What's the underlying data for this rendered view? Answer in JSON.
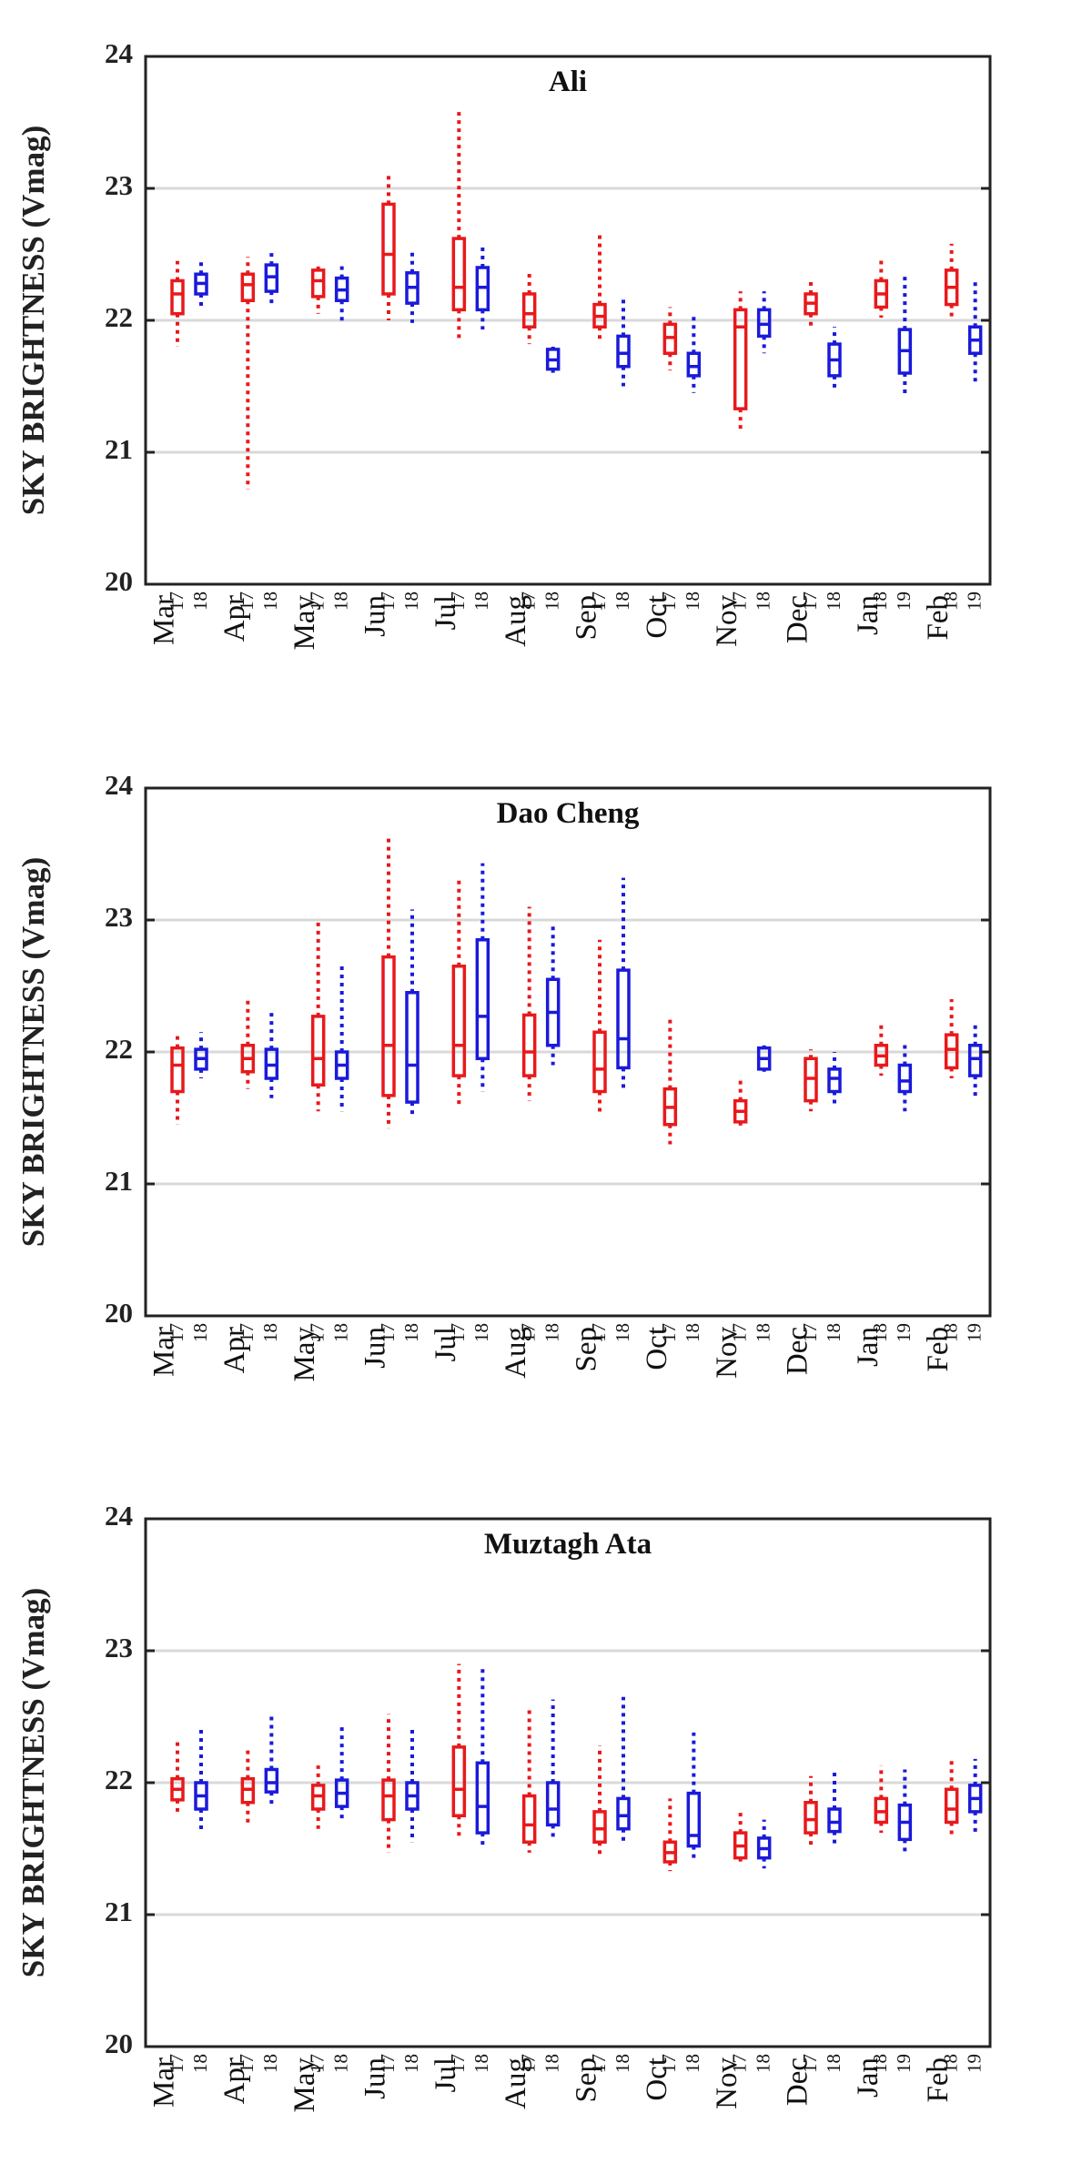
{
  "chart_data": [
    {
      "type": "box",
      "title": "Ali",
      "ylabel": "SKY BRIGHTNESS (Vmag)",
      "ylim": [
        20,
        24
      ],
      "yticks": [
        20,
        21,
        22,
        23,
        24
      ],
      "ytick_labels": [
        "20",
        "21",
        "22",
        "23",
        "24"
      ],
      "grid": true,
      "colors": [
        "#e8191b",
        "#1a1adb"
      ],
      "months": [
        {
          "label": "Mar",
          "years": [
            "17",
            "18"
          ],
          "boxes": [
            {
              "wlo": 21.8,
              "q1": 22.05,
              "med": 22.2,
              "q3": 22.3,
              "whi": 22.45
            },
            {
              "wlo": 22.08,
              "q1": 22.2,
              "med": 22.28,
              "q3": 22.35,
              "whi": 22.47
            }
          ]
        },
        {
          "label": "Apr",
          "years": [
            "17",
            "18"
          ],
          "boxes": [
            {
              "wlo": 20.72,
              "q1": 22.15,
              "med": 22.27,
              "q3": 22.35,
              "whi": 22.48
            },
            {
              "wlo": 22.1,
              "q1": 22.22,
              "med": 22.33,
              "q3": 22.42,
              "whi": 22.52
            }
          ]
        },
        {
          "label": "May",
          "years": [
            "17",
            "18"
          ],
          "boxes": [
            {
              "wlo": 22.05,
              "q1": 22.18,
              "med": 22.3,
              "q3": 22.38,
              "whi": 22.42
            },
            {
              "wlo": 21.98,
              "q1": 22.15,
              "med": 22.23,
              "q3": 22.32,
              "whi": 22.42
            }
          ]
        },
        {
          "label": "Jun",
          "years": [
            "17",
            "18"
          ],
          "boxes": [
            {
              "wlo": 22.0,
              "q1": 22.2,
              "med": 22.5,
              "q3": 22.88,
              "whi": 23.12
            },
            {
              "wlo": 21.98,
              "q1": 22.13,
              "med": 22.25,
              "q3": 22.36,
              "whi": 22.52
            }
          ]
        },
        {
          "label": "Jul",
          "years": [
            "17",
            "18"
          ],
          "boxes": [
            {
              "wlo": 21.85,
              "q1": 22.08,
              "med": 22.25,
              "q3": 22.62,
              "whi": 23.6
            },
            {
              "wlo": 21.93,
              "q1": 22.08,
              "med": 22.25,
              "q3": 22.4,
              "whi": 22.57
            }
          ]
        },
        {
          "label": "Aug",
          "years": [
            "17",
            "18"
          ],
          "boxes": [
            {
              "wlo": 21.82,
              "q1": 21.95,
              "med": 22.05,
              "q3": 22.2,
              "whi": 22.37
            },
            {
              "wlo": 21.6,
              "q1": 21.63,
              "med": 21.7,
              "q3": 21.78,
              "whi": 21.8
            }
          ]
        },
        {
          "label": "Sep",
          "years": [
            "17",
            "18"
          ],
          "boxes": [
            {
              "wlo": 21.85,
              "q1": 21.95,
              "med": 22.03,
              "q3": 22.12,
              "whi": 22.65
            },
            {
              "wlo": 21.5,
              "q1": 21.65,
              "med": 21.75,
              "q3": 21.88,
              "whi": 22.17
            }
          ]
        },
        {
          "label": "Oct",
          "years": [
            "17",
            "18"
          ],
          "boxes": [
            {
              "wlo": 21.62,
              "q1": 21.75,
              "med": 21.87,
              "q3": 21.97,
              "whi": 22.1
            },
            {
              "wlo": 21.45,
              "q1": 21.58,
              "med": 21.65,
              "q3": 21.75,
              "whi": 22.05
            }
          ]
        },
        {
          "label": "Nov",
          "years": [
            "17",
            "18"
          ],
          "boxes": [
            {
              "wlo": 21.17,
              "q1": 21.33,
              "med": 21.95,
              "q3": 22.08,
              "whi": 22.22
            },
            {
              "wlo": 21.75,
              "q1": 21.88,
              "med": 21.97,
              "q3": 22.08,
              "whi": 22.22
            }
          ]
        },
        {
          "label": "Dec",
          "years": [
            "17",
            "18"
          ],
          "boxes": [
            {
              "wlo": 21.95,
              "q1": 22.05,
              "med": 22.13,
              "q3": 22.2,
              "whi": 22.32
            },
            {
              "wlo": 21.47,
              "q1": 21.58,
              "med": 21.7,
              "q3": 21.82,
              "whi": 21.95
            }
          ]
        },
        {
          "label": "Jan",
          "years": [
            "18",
            "19"
          ],
          "boxes": [
            {
              "wlo": 22.02,
              "q1": 22.1,
              "med": 22.2,
              "q3": 22.3,
              "whi": 22.47
            },
            {
              "wlo": 21.43,
              "q1": 21.6,
              "med": 21.77,
              "q3": 21.93,
              "whi": 22.35
            }
          ]
        },
        {
          "label": "Feb",
          "years": [
            "18",
            "19"
          ],
          "boxes": [
            {
              "wlo": 22.0,
              "q1": 22.12,
              "med": 22.25,
              "q3": 22.38,
              "whi": 22.58
            },
            {
              "wlo": 21.53,
              "q1": 21.75,
              "med": 21.85,
              "q3": 21.95,
              "whi": 22.3
            }
          ]
        }
      ]
    },
    {
      "type": "box",
      "title": "Dao Cheng",
      "ylabel": "SKY BRIGHTNESS (Vmag)",
      "ylim": [
        20,
        24
      ],
      "yticks": [
        20,
        21,
        22,
        23,
        24
      ],
      "ytick_labels": [
        "20",
        "21",
        "22",
        "23",
        "24"
      ],
      "grid": true,
      "colors": [
        "#e8191b",
        "#1a1adb"
      ],
      "months": [
        {
          "label": "Mar",
          "years": [
            "17",
            "18"
          ],
          "boxes": [
            {
              "wlo": 21.45,
              "q1": 21.7,
              "med": 21.9,
              "q3": 22.03,
              "whi": 22.15
            },
            {
              "wlo": 21.8,
              "q1": 21.87,
              "med": 21.95,
              "q3": 22.02,
              "whi": 22.15
            }
          ]
        },
        {
          "label": "Apr",
          "years": [
            "17",
            "18"
          ],
          "boxes": [
            {
              "wlo": 21.72,
              "q1": 21.85,
              "med": 21.95,
              "q3": 22.05,
              "whi": 22.4
            },
            {
              "wlo": 21.65,
              "q1": 21.8,
              "med": 21.9,
              "q3": 22.02,
              "whi": 22.3
            }
          ]
        },
        {
          "label": "May",
          "years": [
            "17",
            "18"
          ],
          "boxes": [
            {
              "wlo": 21.55,
              "q1": 21.75,
              "med": 21.95,
              "q3": 22.27,
              "whi": 22.98
            },
            {
              "wlo": 21.55,
              "q1": 21.8,
              "med": 21.9,
              "q3": 22.0,
              "whi": 22.68
            }
          ]
        },
        {
          "label": "Jun",
          "years": [
            "17",
            "18"
          ],
          "boxes": [
            {
              "wlo": 21.42,
              "q1": 21.67,
              "med": 22.05,
              "q3": 22.72,
              "whi": 23.62
            },
            {
              "wlo": 21.5,
              "q1": 21.62,
              "med": 21.9,
              "q3": 22.45,
              "whi": 23.08
            }
          ]
        },
        {
          "label": "Jul",
          "years": [
            "17",
            "18"
          ],
          "boxes": [
            {
              "wlo": 21.58,
              "q1": 21.82,
              "med": 22.05,
              "q3": 22.65,
              "whi": 23.33
            },
            {
              "wlo": 21.7,
              "q1": 21.95,
              "med": 22.27,
              "q3": 22.85,
              "whi": 23.43
            }
          ]
        },
        {
          "label": "Aug",
          "years": [
            "17",
            "18"
          ],
          "boxes": [
            {
              "wlo": 21.63,
              "q1": 21.82,
              "med": 22.0,
              "q3": 22.28,
              "whi": 23.1
            },
            {
              "wlo": 21.9,
              "q1": 22.05,
              "med": 22.3,
              "q3": 22.55,
              "whi": 22.97
            }
          ]
        },
        {
          "label": "Sep",
          "years": [
            "17",
            "18"
          ],
          "boxes": [
            {
              "wlo": 21.52,
              "q1": 21.7,
              "med": 21.87,
              "q3": 22.15,
              "whi": 22.85
            },
            {
              "wlo": 21.72,
              "q1": 21.88,
              "med": 22.1,
              "q3": 22.62,
              "whi": 23.32
            }
          ]
        },
        {
          "label": "Oct",
          "years": [
            "17",
            "18"
          ],
          "boxes": [
            {
              "wlo": 21.3,
              "q1": 21.45,
              "med": 21.58,
              "q3": 21.72,
              "whi": 22.25
            },
            null
          ]
        },
        {
          "label": "Nov",
          "years": [
            "17",
            "18"
          ],
          "boxes": [
            {
              "wlo": 21.42,
              "q1": 21.47,
              "med": 21.55,
              "q3": 21.63,
              "whi": 21.8
            },
            {
              "wlo": 21.85,
              "q1": 21.87,
              "med": 21.95,
              "q3": 22.03,
              "whi": 22.05
            }
          ]
        },
        {
          "label": "Dec",
          "years": [
            "17",
            "18"
          ],
          "boxes": [
            {
              "wlo": 21.55,
              "q1": 21.63,
              "med": 21.8,
              "q3": 21.95,
              "whi": 22.02
            },
            {
              "wlo": 21.58,
              "q1": 21.7,
              "med": 21.8,
              "q3": 21.87,
              "whi": 22.0
            }
          ]
        },
        {
          "label": "Jan",
          "years": [
            "18",
            "19"
          ],
          "boxes": [
            {
              "wlo": 21.82,
              "q1": 21.9,
              "med": 21.97,
              "q3": 22.05,
              "whi": 22.22
            },
            {
              "wlo": 21.55,
              "q1": 21.7,
              "med": 21.78,
              "q3": 21.9,
              "whi": 22.08
            }
          ]
        },
        {
          "label": "Feb",
          "years": [
            "18",
            "19"
          ],
          "boxes": [
            {
              "wlo": 21.8,
              "q1": 21.88,
              "med": 22.02,
              "q3": 22.13,
              "whi": 22.4
            },
            {
              "wlo": 21.65,
              "q1": 21.82,
              "med": 21.95,
              "q3": 22.05,
              "whi": 22.22
            }
          ]
        }
      ]
    },
    {
      "type": "box",
      "title": "Muztagh Ata",
      "ylabel": "SKY BRIGHTNESS (Vmag)",
      "ylim": [
        20,
        24
      ],
      "yticks": [
        20,
        21,
        22,
        23,
        24
      ],
      "ytick_labels": [
        "20",
        "21",
        "22",
        "23",
        "24"
      ],
      "grid": true,
      "colors": [
        "#e8191b",
        "#1a1adb"
      ],
      "months": [
        {
          "label": "Mar",
          "years": [
            "17",
            "18"
          ],
          "boxes": [
            {
              "wlo": 21.75,
              "q1": 21.87,
              "med": 21.95,
              "q3": 22.03,
              "whi": 22.32
            },
            {
              "wlo": 21.63,
              "q1": 21.8,
              "med": 21.9,
              "q3": 22.0,
              "whi": 22.4
            }
          ]
        },
        {
          "label": "Apr",
          "years": [
            "17",
            "18"
          ],
          "boxes": [
            {
              "wlo": 21.68,
              "q1": 21.85,
              "med": 21.95,
              "q3": 22.03,
              "whi": 22.25
            },
            {
              "wlo": 21.82,
              "q1": 21.93,
              "med": 22.0,
              "q3": 22.1,
              "whi": 22.52
            }
          ]
        },
        {
          "label": "May",
          "years": [
            "17",
            "18"
          ],
          "boxes": [
            {
              "wlo": 21.65,
              "q1": 21.8,
              "med": 21.9,
              "q3": 21.98,
              "whi": 22.13
            },
            {
              "wlo": 21.73,
              "q1": 21.82,
              "med": 21.92,
              "q3": 22.02,
              "whi": 22.42
            }
          ]
        },
        {
          "label": "Jun",
          "years": [
            "17",
            "18"
          ],
          "boxes": [
            {
              "wlo": 21.47,
              "q1": 21.72,
              "med": 21.9,
              "q3": 22.02,
              "whi": 22.52
            },
            {
              "wlo": 21.55,
              "q1": 21.8,
              "med": 21.9,
              "q3": 22.0,
              "whi": 22.4
            }
          ]
        },
        {
          "label": "Jul",
          "years": [
            "17",
            "18"
          ],
          "boxes": [
            {
              "wlo": 21.58,
              "q1": 21.75,
              "med": 21.95,
              "q3": 22.27,
              "whi": 22.9
            },
            {
              "wlo": 21.52,
              "q1": 21.62,
              "med": 21.82,
              "q3": 22.15,
              "whi": 22.88
            }
          ]
        },
        {
          "label": "Aug",
          "years": [
            "17",
            "18"
          ],
          "boxes": [
            {
              "wlo": 21.47,
              "q1": 21.55,
              "med": 21.68,
              "q3": 21.9,
              "whi": 22.57
            },
            {
              "wlo": 21.58,
              "q1": 21.68,
              "med": 21.8,
              "q3": 22.0,
              "whi": 22.63
            }
          ]
        },
        {
          "label": "Sep",
          "years": [
            "17",
            "18"
          ],
          "boxes": [
            {
              "wlo": 21.45,
              "q1": 21.55,
              "med": 21.65,
              "q3": 21.78,
              "whi": 22.28
            },
            {
              "wlo": 21.55,
              "q1": 21.65,
              "med": 21.75,
              "q3": 21.88,
              "whi": 22.65
            }
          ]
        },
        {
          "label": "Oct",
          "years": [
            "17",
            "18"
          ],
          "boxes": [
            {
              "wlo": 21.33,
              "q1": 21.4,
              "med": 21.47,
              "q3": 21.55,
              "whi": 21.88
            },
            {
              "wlo": 21.42,
              "q1": 21.52,
              "med": 21.6,
              "q3": 21.92,
              "whi": 22.38
            }
          ]
        },
        {
          "label": "Nov",
          "years": [
            "17",
            "18"
          ],
          "boxes": [
            {
              "wlo": 21.37,
              "q1": 21.43,
              "med": 21.52,
              "q3": 21.62,
              "whi": 21.78
            },
            {
              "wlo": 21.35,
              "q1": 21.43,
              "med": 21.5,
              "q3": 21.58,
              "whi": 21.72
            }
          ]
        },
        {
          "label": "Dec",
          "years": [
            "17",
            "18"
          ],
          "boxes": [
            {
              "wlo": 21.5,
              "q1": 21.62,
              "med": 21.72,
              "q3": 21.85,
              "whi": 22.05
            },
            {
              "wlo": 21.52,
              "q1": 21.63,
              "med": 21.7,
              "q3": 21.8,
              "whi": 22.08
            }
          ]
        },
        {
          "label": "Jan",
          "years": [
            "18",
            "19"
          ],
          "boxes": [
            {
              "wlo": 21.62,
              "q1": 21.7,
              "med": 21.78,
              "q3": 21.88,
              "whi": 22.13
            },
            {
              "wlo": 21.48,
              "q1": 21.57,
              "med": 21.7,
              "q3": 21.83,
              "whi": 22.1
            }
          ]
        },
        {
          "label": "Feb",
          "years": [
            "18",
            "19"
          ],
          "boxes": [
            {
              "wlo": 21.6,
              "q1": 21.7,
              "med": 21.8,
              "q3": 21.95,
              "whi": 22.17
            },
            {
              "wlo": 21.62,
              "q1": 21.78,
              "med": 21.88,
              "q3": 21.98,
              "whi": 22.18
            }
          ]
        }
      ]
    }
  ]
}
